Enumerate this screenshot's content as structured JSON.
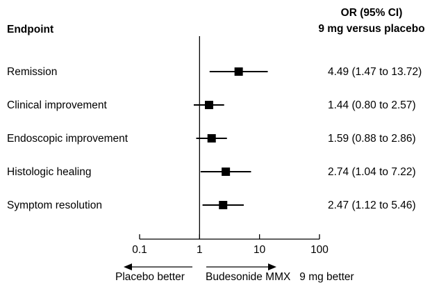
{
  "chart_data": {
    "type": "forest",
    "headers": {
      "endpoint": "Endpoint",
      "or_line1": "OR (95% CI)",
      "or_line2": "9 mg versus placebo"
    },
    "rows": [
      {
        "label": "Remission",
        "or": 4.49,
        "lo": 1.47,
        "hi": 13.72,
        "text": "4.49 (1.47 to 13.72)"
      },
      {
        "label": "Clinical improvement",
        "or": 1.44,
        "lo": 0.8,
        "hi": 2.57,
        "text": "1.44 (0.80 to 2.57)"
      },
      {
        "label": "Endoscopic improvement",
        "or": 1.59,
        "lo": 0.88,
        "hi": 2.86,
        "text": "1.59 (0.88 to 2.86)"
      },
      {
        "label": "Histologic healing",
        "or": 2.74,
        "lo": 1.04,
        "hi": 7.22,
        "text": "2.74 (1.04 to 7.22)"
      },
      {
        "label": "Symptom resolution",
        "or": 2.47,
        "lo": 1.12,
        "hi": 5.46,
        "text": "2.47 (1.12 to 5.46)"
      }
    ],
    "x_axis": {
      "scale": "log",
      "ticks": [
        0.1,
        1,
        10,
        100
      ],
      "tick_labels": [
        "0.1",
        "1",
        "10",
        "100"
      ],
      "reference_line": 1
    },
    "direction_labels": {
      "left": "Placebo better",
      "right": "Budesonide MMX   9 mg better"
    }
  }
}
